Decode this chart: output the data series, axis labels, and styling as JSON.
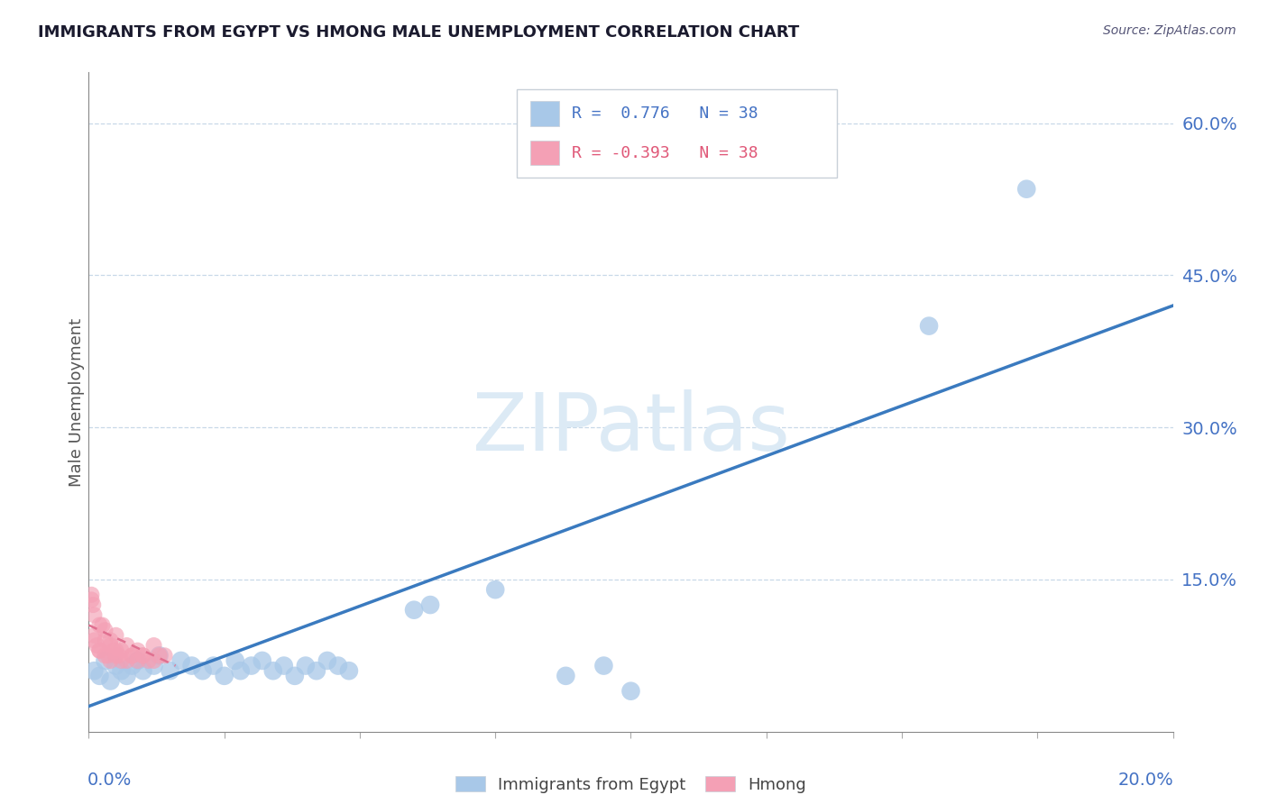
{
  "title": "IMMIGRANTS FROM EGYPT VS HMONG MALE UNEMPLOYMENT CORRELATION CHART",
  "source": "Source: ZipAtlas.com",
  "ylabel": "Male Unemployment",
  "yticks": [
    0.0,
    0.15,
    0.3,
    0.45,
    0.6
  ],
  "ytick_labels": [
    "",
    "15.0%",
    "30.0%",
    "45.0%",
    "60.0%"
  ],
  "xlim": [
    0.0,
    0.2
  ],
  "ylim": [
    0.0,
    0.65
  ],
  "watermark": "ZIPatlas",
  "scatter_blue": [
    [
      0.001,
      0.06
    ],
    [
      0.002,
      0.055
    ],
    [
      0.003,
      0.07
    ],
    [
      0.004,
      0.05
    ],
    [
      0.005,
      0.065
    ],
    [
      0.006,
      0.06
    ],
    [
      0.007,
      0.055
    ],
    [
      0.008,
      0.065
    ],
    [
      0.009,
      0.07
    ],
    [
      0.01,
      0.06
    ],
    [
      0.012,
      0.065
    ],
    [
      0.013,
      0.075
    ],
    [
      0.015,
      0.06
    ],
    [
      0.017,
      0.07
    ],
    [
      0.019,
      0.065
    ],
    [
      0.021,
      0.06
    ],
    [
      0.023,
      0.065
    ],
    [
      0.025,
      0.055
    ],
    [
      0.027,
      0.07
    ],
    [
      0.028,
      0.06
    ],
    [
      0.03,
      0.065
    ],
    [
      0.032,
      0.07
    ],
    [
      0.034,
      0.06
    ],
    [
      0.036,
      0.065
    ],
    [
      0.038,
      0.055
    ],
    [
      0.04,
      0.065
    ],
    [
      0.042,
      0.06
    ],
    [
      0.044,
      0.07
    ],
    [
      0.046,
      0.065
    ],
    [
      0.048,
      0.06
    ],
    [
      0.06,
      0.12
    ],
    [
      0.063,
      0.125
    ],
    [
      0.075,
      0.14
    ],
    [
      0.088,
      0.055
    ],
    [
      0.095,
      0.065
    ],
    [
      0.1,
      0.04
    ],
    [
      0.155,
      0.4
    ],
    [
      0.173,
      0.535
    ]
  ],
  "scatter_pink": [
    [
      0.0005,
      0.13
    ],
    [
      0.001,
      0.095
    ],
    [
      0.0015,
      0.085
    ],
    [
      0.002,
      0.08
    ],
    [
      0.0025,
      0.105
    ],
    [
      0.003,
      0.09
    ],
    [
      0.0035,
      0.075
    ],
    [
      0.004,
      0.085
    ],
    [
      0.0045,
      0.08
    ],
    [
      0.005,
      0.095
    ],
    [
      0.0055,
      0.075
    ],
    [
      0.006,
      0.07
    ],
    [
      0.007,
      0.085
    ],
    [
      0.008,
      0.075
    ],
    [
      0.009,
      0.08
    ],
    [
      0.01,
      0.075
    ],
    [
      0.011,
      0.07
    ],
    [
      0.012,
      0.085
    ],
    [
      0.013,
      0.075
    ],
    [
      0.0005,
      0.135
    ],
    [
      0.001,
      0.115
    ],
    [
      0.002,
      0.105
    ],
    [
      0.003,
      0.1
    ],
    [
      0.004,
      0.09
    ],
    [
      0.005,
      0.08
    ],
    [
      0.001,
      0.09
    ],
    [
      0.002,
      0.08
    ],
    [
      0.003,
      0.075
    ],
    [
      0.004,
      0.07
    ],
    [
      0.005,
      0.075
    ],
    [
      0.006,
      0.08
    ],
    [
      0.007,
      0.07
    ],
    [
      0.008,
      0.075
    ],
    [
      0.009,
      0.07
    ],
    [
      0.01,
      0.075
    ],
    [
      0.012,
      0.07
    ],
    [
      0.0008,
      0.125
    ],
    [
      0.014,
      0.075
    ]
  ],
  "blue_line_x": [
    0.0,
    0.2
  ],
  "blue_line_y": [
    0.025,
    0.42
  ],
  "pink_line_x": [
    0.0,
    0.016
  ],
  "pink_line_y": [
    0.105,
    0.065
  ],
  "colors": {
    "blue_scatter": "#a8c8e8",
    "pink_scatter": "#f4a0b5",
    "blue_line": "#3a7abf",
    "pink_line": "#e07090",
    "grid": "#c8d8e8",
    "title": "#1a1a2e",
    "source": "#555577",
    "watermark": "#dceaf5",
    "ytick": "#4472c4",
    "legend_text_blue": "#4472c4",
    "legend_text_pink": "#e05878",
    "legend_border": "#c8d0d8"
  }
}
